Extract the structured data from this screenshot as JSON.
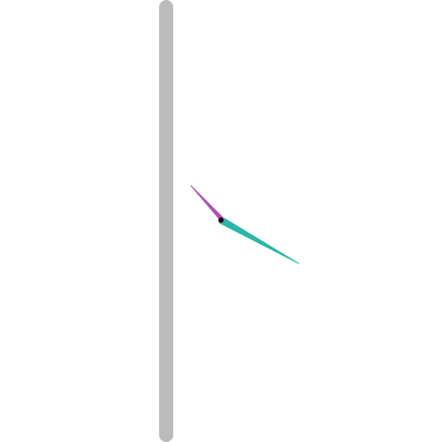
{
  "scene": {
    "background_color": "#ffffff",
    "bar_color": "#bbbbbb",
    "hands": {
      "hour": {
        "name": "hour-hand",
        "color": "#a855b2"
      },
      "minute": {
        "name": "minute-hand",
        "color": "#2bb6a8"
      },
      "pivot": {
        "name": "pivot-dot",
        "color": "#111111"
      }
    }
  }
}
